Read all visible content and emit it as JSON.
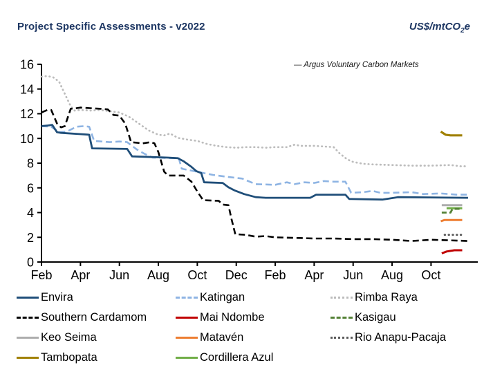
{
  "header": {
    "title": "Project Specific Assessments - v2022",
    "unit_prefix": "US$/mtCO",
    "unit_sub": "2",
    "unit_suffix": "e"
  },
  "chart_data": {
    "type": "line",
    "title": "Project Specific Assessments - v2022",
    "ylabel": "US$/mtCO2e",
    "annotation": "— Argus Voluntary Carbon Markets",
    "ylim": [
      0,
      16
    ],
    "y_ticks": [
      0,
      2,
      4,
      6,
      8,
      10,
      12,
      14,
      16
    ],
    "x_tick_labels": [
      "Feb",
      "Apr",
      "Jun",
      "Aug",
      "Oct",
      "Dec",
      "Feb",
      "Apr",
      "Jun",
      "Aug",
      "Oct"
    ],
    "x_tick_positions": [
      0,
      2,
      4,
      6,
      8,
      10,
      12,
      14,
      16,
      18,
      20
    ],
    "x_unit": "months (Feb year1 - Nov year2)",
    "grid": false,
    "legend_position": "bottom",
    "series": [
      {
        "name": "Envira",
        "color": "#1f4e79",
        "style": "solid",
        "width": 2.8,
        "x": [
          0,
          0.35,
          0.55,
          0.8,
          1,
          2,
          2.45,
          2.6,
          4.4,
          4.65,
          6.5,
          7,
          7.3,
          7.7,
          7.95,
          8.2,
          8.35,
          9.3,
          9.6,
          9.9,
          10.4,
          11,
          11.5,
          13.8,
          14.1,
          15.6,
          15.8,
          17.5,
          18.3,
          21.9
        ],
        "values": [
          11.0,
          11.05,
          11.1,
          10.5,
          10.45,
          10.35,
          10.3,
          9.2,
          9.15,
          8.55,
          8.45,
          8.4,
          8.15,
          7.7,
          7.35,
          7.2,
          6.45,
          6.4,
          6.05,
          5.8,
          5.5,
          5.25,
          5.2,
          5.2,
          5.45,
          5.45,
          5.1,
          5.05,
          5.25,
          5.2
        ]
      },
      {
        "name": "Katingan",
        "color": "#8eb4e3",
        "style": "dashed",
        "width": 2.6,
        "x": [
          0,
          0.5,
          0.9,
          1.3,
          1.8,
          2.2,
          2.45,
          2.7,
          3.5,
          4,
          4.4,
          4.9,
          5.3,
          5.7,
          6.8,
          7.05,
          7.2,
          8,
          8.8,
          9.5,
          10.3,
          11,
          12,
          12.6,
          13,
          13.5,
          14,
          14.5,
          15,
          15.6,
          15.9,
          16.5,
          17,
          17.4,
          18,
          19,
          19.6,
          20.5,
          21.3,
          21.9
        ],
        "values": [
          11.0,
          10.95,
          10.5,
          10.55,
          10.95,
          11.0,
          10.95,
          9.8,
          9.7,
          9.75,
          9.7,
          9.1,
          8.75,
          8.45,
          8.4,
          8.4,
          7.55,
          7.3,
          7.05,
          6.9,
          6.75,
          6.3,
          6.25,
          6.45,
          6.3,
          6.45,
          6.4,
          6.55,
          6.5,
          6.5,
          5.6,
          5.65,
          5.75,
          5.6,
          5.6,
          5.65,
          5.5,
          5.55,
          5.45,
          5.45
        ]
      },
      {
        "name": "Rimba Raya",
        "color": "#bcbcbc",
        "style": "dotted",
        "width": 2.7,
        "x": [
          0,
          0.3,
          0.6,
          0.9,
          1.2,
          1.5,
          1.7,
          2,
          2.5,
          3,
          3.5,
          4,
          4.5,
          5,
          5.5,
          6,
          6.3,
          6.6,
          7,
          7.5,
          8,
          8.5,
          9,
          9.5,
          10,
          10.5,
          11,
          11.5,
          12,
          12.6,
          13,
          13.3,
          14,
          14.5,
          15,
          15.3,
          15.7,
          16,
          16.5,
          17,
          18,
          19,
          20,
          21,
          21.5,
          21.9
        ],
        "values": [
          15.0,
          15.05,
          14.95,
          14.6,
          13.6,
          12.6,
          12.25,
          12.3,
          12.25,
          12.3,
          12.2,
          12.1,
          11.75,
          11.2,
          10.65,
          10.3,
          10.25,
          10.4,
          10.05,
          9.9,
          9.8,
          9.55,
          9.4,
          9.3,
          9.25,
          9.3,
          9.3,
          9.25,
          9.3,
          9.3,
          9.5,
          9.4,
          9.4,
          9.35,
          9.3,
          8.8,
          8.3,
          8.1,
          7.95,
          7.9,
          7.85,
          7.8,
          7.8,
          7.85,
          7.75,
          7.75
        ]
      },
      {
        "name": "Southern Cardamom",
        "color": "#000000",
        "style": "dashed",
        "width": 2.6,
        "x": [
          0,
          0.3,
          0.5,
          0.8,
          1,
          1.2,
          1.5,
          1.8,
          2,
          2.5,
          3,
          3.4,
          3.7,
          4,
          4.3,
          4.6,
          5.2,
          5.6,
          5.8,
          6,
          6.3,
          6.5,
          7.3,
          7.7,
          8,
          8.3,
          9.1,
          9.3,
          9.6,
          9.75,
          9.95,
          10.5,
          11,
          11.5,
          12,
          13,
          14,
          15,
          16,
          17,
          18,
          19,
          19.5,
          20,
          21,
          21.9
        ],
        "values": [
          12.1,
          12.3,
          12.3,
          11.2,
          10.9,
          11.0,
          12.4,
          12.45,
          12.5,
          12.45,
          12.4,
          12.35,
          11.9,
          11.85,
          11.2,
          9.7,
          9.6,
          9.7,
          9.6,
          8.9,
          7.3,
          7.0,
          7.0,
          6.5,
          5.7,
          5.0,
          4.95,
          4.65,
          4.6,
          3.5,
          2.25,
          2.2,
          2.05,
          2.1,
          2.0,
          1.95,
          1.9,
          1.9,
          1.85,
          1.85,
          1.8,
          1.7,
          1.75,
          1.8,
          1.75,
          1.7
        ]
      },
      {
        "name": "Mai Ndombe",
        "color": "#c00000",
        "style": "solid",
        "width": 3,
        "x": [
          20.55,
          20.8,
          21.2,
          21.6
        ],
        "values": [
          0.7,
          0.85,
          0.95,
          0.95
        ]
      },
      {
        "name": "Kasigau",
        "color": "#538135",
        "style": "dashed",
        "width": 2.8,
        "x": [
          20.55,
          21.0,
          21.1,
          21.6
        ],
        "values": [
          4.0,
          4.0,
          4.3,
          4.3
        ]
      },
      {
        "name": "Keo Seima",
        "color": "#adadad",
        "style": "solid",
        "width": 3,
        "x": [
          20.55,
          21.6
        ],
        "values": [
          4.6,
          4.6
        ]
      },
      {
        "name": "Matavén",
        "color": "#ed7d31",
        "style": "solid",
        "width": 3,
        "x": [
          20.5,
          20.7,
          21.6
        ],
        "values": [
          3.3,
          3.4,
          3.4
        ]
      },
      {
        "name": "Rio Anapu-Pacaja",
        "color": "#595959",
        "style": "dotted",
        "width": 2.8,
        "x": [
          20.7,
          21.6
        ],
        "values": [
          2.2,
          2.2
        ]
      },
      {
        "name": "Tambopata",
        "color": "#a08000",
        "style": "solid",
        "width": 3.2,
        "x": [
          20.5,
          20.75,
          21,
          21.6
        ],
        "values": [
          10.55,
          10.3,
          10.25,
          10.25
        ]
      },
      {
        "name": "Cordillera Azul",
        "color": "#70ad47",
        "style": "solid",
        "width": 3,
        "x": [
          20.8,
          21.6
        ],
        "values": [
          4.35,
          4.35
        ]
      }
    ]
  }
}
